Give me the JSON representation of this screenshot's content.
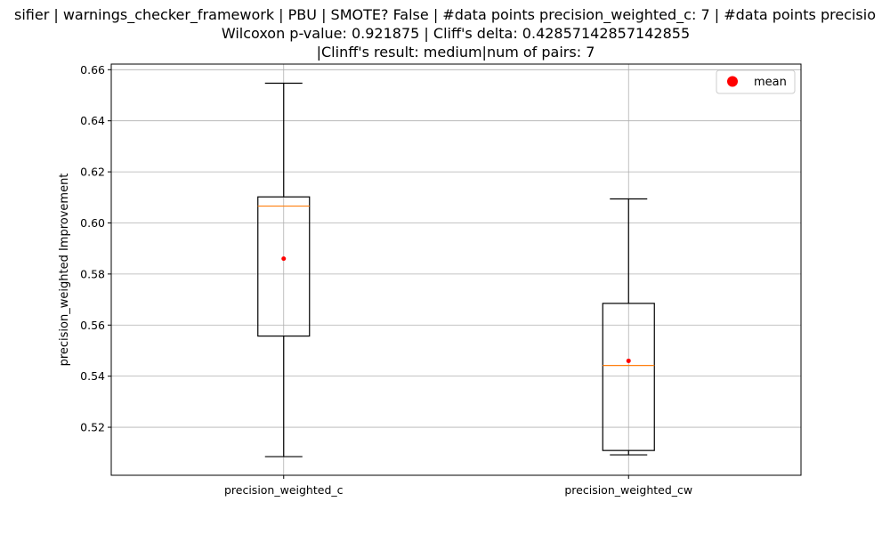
{
  "chart_data": {
    "type": "box",
    "title_lines": [
      "sifier | warnings_checker_framework | PBU | SMOTE? False | #data points precision_weighted_c: 7 | #data points precisio",
      "Wilcoxon p-value: 0.921875 | Cliff's delta: 0.42857142857142855",
      "|Clinff's result: medium|num of pairs: 7"
    ],
    "xlabel": "",
    "ylabel": "precision_weighted Improvement",
    "ylim": [
      0.5012,
      0.6622
    ],
    "yticks": [
      0.52,
      0.54,
      0.56,
      0.58,
      0.6,
      0.62,
      0.64,
      0.66
    ],
    "ytick_labels": [
      "0.52",
      "0.54",
      "0.56",
      "0.58",
      "0.60",
      "0.62",
      "0.64",
      "0.66"
    ],
    "grid": true,
    "legend": {
      "position": "upper-right",
      "entries": [
        {
          "label": "mean",
          "color": "#ff0000"
        }
      ]
    },
    "categories": [
      "precision_weighted_c",
      "precision_weighted_cw"
    ],
    "boxes": [
      {
        "name": "precision_weighted_c",
        "whisker_low": 0.5085,
        "q1": 0.5557,
        "median": 0.6066,
        "q3": 0.6102,
        "whisker_high": 0.6547,
        "mean": 0.586
      },
      {
        "name": "precision_weighted_cw",
        "whisker_low": 0.5092,
        "q1": 0.5109,
        "median": 0.5442,
        "q3": 0.5685,
        "whisker_high": 0.6094,
        "mean": 0.546
      }
    ],
    "colors": {
      "box": "#000000",
      "median": "#ff7f0e",
      "mean": "#ff0000",
      "grid": "#b0b0b0"
    }
  }
}
